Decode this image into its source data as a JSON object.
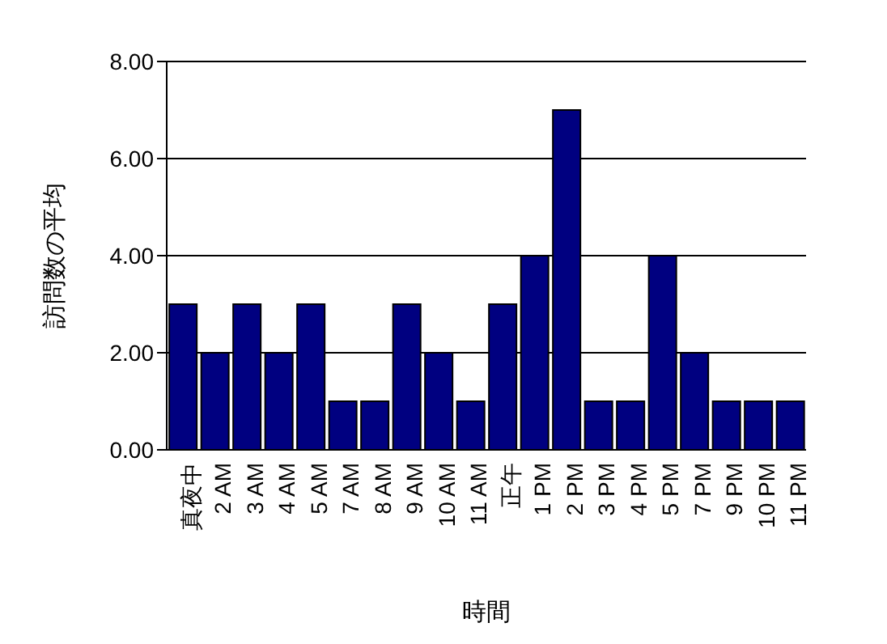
{
  "chart_data": {
    "type": "bar",
    "xlabel": "時間",
    "ylabel": "訪問数の平均",
    "categories": [
      "真夜中",
      "2 AM",
      "3 AM",
      "4 AM",
      "5 AM",
      "7 AM",
      "8 AM",
      "9 AM",
      "10 AM",
      "11 AM",
      "正午",
      "1 PM",
      "2 PM",
      "3 PM",
      "4 PM",
      "5 PM",
      "7 PM",
      "9 PM",
      "10 PM",
      "11 PM"
    ],
    "values": [
      3,
      2,
      3,
      2,
      3,
      1,
      1,
      3,
      2,
      1,
      3,
      4,
      7,
      1,
      1,
      4,
      2,
      1,
      1,
      1
    ],
    "color": "#000080",
    "ylim": [
      0,
      8
    ],
    "yticks": [
      {
        "value": 0,
        "label": "0.00"
      },
      {
        "value": 2,
        "label": "2.00"
      },
      {
        "value": 4,
        "label": "4.00"
      },
      {
        "value": 6,
        "label": "6.00"
      },
      {
        "value": 8,
        "label": "8.00"
      }
    ],
    "grid": "y"
  }
}
